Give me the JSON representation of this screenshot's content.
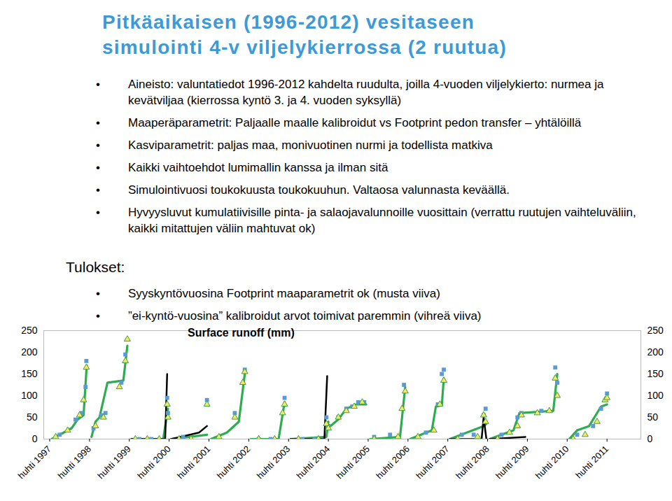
{
  "slide": {
    "title": [
      "Pitkäaikaisen (1996-2012) vesitaseen",
      "simulointi 4-v viljelykierrossa (2 ruutua)"
    ],
    "bullets": [
      "Aineisto: valuntatiedot 1996-2012 kahdelta ruudulta, joilla 4-vuoden viljelykierto: nurmea ja kevätviljaa (kierrossa kyntö 3. ja 4. vuoden syksyllä)",
      "Maaperäparametrit: Paljaalle maalle kalibroidut vs Footprint pedon transfer – yhtälöillä",
      "Kasviparametrit: paljas maa, monivuotinen nurmi ja todellista matkiva",
      "Kaikki vaihtoehdot lumimallin kanssa ja ilman sitä",
      "Simulointivuosi toukokuusta toukokuuhun. Valtaosa valunnasta keväällä.",
      "Hyvyysluvut kumulatiivisille pinta- ja salaojavalunnoille vuosittain (verrattu ruutujen vaihteluväliin, kaikki mitattujen väliin mahtuvat ok)"
    ],
    "results_heading": "Tulokset:",
    "results": [
      "Syyskyntövuosina Footprint maaparametrit ok (musta viiva)",
      "”ei-kyntö-vuosina” kalibroidut arvot toimivat paremmin (vihreä viiva)"
    ]
  },
  "chart_data": {
    "type": "line",
    "title": "Surface runoff (mm)",
    "xlim": [
      1997.1,
      2012.1
    ],
    "xticks": [
      {
        "value": 1997.25,
        "label": "huhti 1997"
      },
      {
        "value": 1998.25,
        "label": "huhti 1998"
      },
      {
        "value": 1999.25,
        "label": "huhti 1999"
      },
      {
        "value": 2000.25,
        "label": "huhti 2000"
      },
      {
        "value": 2001.25,
        "label": "huhti 2001"
      },
      {
        "value": 2002.25,
        "label": "huhti 2002"
      },
      {
        "value": 2003.25,
        "label": "huhti 2003"
      },
      {
        "value": 2004.25,
        "label": "huhti 2004"
      },
      {
        "value": 2005.25,
        "label": "huhti 2005"
      },
      {
        "value": 2006.25,
        "label": "huhti 2006"
      },
      {
        "value": 2007.25,
        "label": "huhti 2007"
      },
      {
        "value": 2008.25,
        "label": "huhti 2008"
      },
      {
        "value": 2009.25,
        "label": "huhti 2009"
      },
      {
        "value": 2010.25,
        "label": "huhti 2010"
      },
      {
        "value": 2011.25,
        "label": "huhti 2011"
      }
    ],
    "ylim": [
      0,
      250
    ],
    "yticks": [
      0,
      50,
      100,
      150,
      200,
      250
    ],
    "series": [
      {
        "type": "line",
        "color": "#2eac4f",
        "x": [
          1997.3,
          1997.8,
          1997.95,
          1998.1,
          1998.18,
          null,
          1998.3,
          1998.4,
          1998.5,
          1998.7,
          1999.1,
          1999.2,
          null,
          1999.3,
          2000.1,
          2000.22,
          null,
          2000.3,
          2001.2,
          null,
          2001.3,
          2001.7,
          2002.0,
          2002.15,
          null,
          2002.3,
          2003.0,
          2003.15,
          null,
          2003.3,
          2004.2,
          2004.25,
          null,
          2004.3,
          2004.5,
          2004.7,
          2004.95,
          2005.2,
          null,
          2005.3,
          2006.05,
          2006.18,
          null,
          2006.3,
          2006.85,
          2006.95,
          2007.1,
          2007.15,
          null,
          2007.3,
          2008.15,
          2008.22,
          null,
          2008.3,
          2008.9,
          2009.05,
          2009.9,
          2010.0,
          null,
          2010.3,
          2010.5,
          2010.8,
          2011.1,
          2011.25
        ],
        "values": [
          0,
          25,
          45,
          55,
          170,
          null,
          5,
          40,
          50,
          130,
          135,
          215,
          null,
          0,
          0,
          70,
          null,
          0,
          10,
          null,
          0,
          15,
          40,
          150,
          null,
          0,
          0,
          85,
          null,
          0,
          5,
          40,
          null,
          30,
          45,
          70,
          80,
          80,
          null,
          0,
          5,
          120,
          null,
          0,
          20,
          75,
          78,
          140,
          null,
          0,
          30,
          35,
          null,
          0,
          20,
          60,
          65,
          150,
          null,
          0,
          20,
          30,
          75,
          80
        ]
      },
      {
        "type": "line",
        "color": "#000000",
        "x": [
          1999.3,
          2000.15,
          2000.2,
          null,
          2000.3,
          2001.0,
          2001.2,
          null,
          2003.3,
          2004.15,
          2004.22,
          null,
          2007.3,
          2008.1,
          2008.15,
          2008.22,
          null,
          2008.3,
          2009.2
        ],
        "values": [
          0,
          0,
          150,
          null,
          0,
          15,
          30,
          null,
          0,
          0,
          145,
          null,
          0,
          0,
          50,
          0,
          null,
          0,
          5
        ]
      },
      {
        "type": "scatter",
        "marker": "square",
        "color": "#5b9bd5",
        "x": [
          1997.5,
          1997.9,
          1998.05,
          1998.15,
          1998.17,
          1998.35,
          1998.55,
          1998.65,
          1999.05,
          1999.15,
          1999.5,
          1999.8,
          2000.2,
          2000.22,
          2000.6,
          2001.2,
          2001.9,
          2002.15,
          2002.5,
          2002.8,
          2003.15,
          2003.6,
          2003.9,
          2004.2,
          2004.25,
          2004.5,
          2004.7,
          2004.85,
          2005.0,
          2005.15,
          2005.4,
          2005.8,
          2006.15,
          2006.7,
          2007.0,
          2007.1,
          2007.15,
          2007.6,
          2007.9,
          2008.15,
          2008.2,
          2008.6,
          2009.0,
          2009.1,
          2009.6,
          2009.95,
          2010.0,
          2010.5,
          2010.9,
          2011.1,
          2011.25
        ],
        "values": [
          10,
          45,
          60,
          120,
          180,
          25,
          55,
          60,
          130,
          195,
          0,
          0,
          95,
          60,
          5,
          90,
          60,
          160,
          0,
          0,
          95,
          0,
          0,
          50,
          30,
          50,
          70,
          75,
          85,
          85,
          5,
          10,
          125,
          15,
          80,
          150,
          160,
          10,
          10,
          55,
          70,
          10,
          50,
          60,
          65,
          165,
          130,
          10,
          30,
          70,
          105
        ]
      },
      {
        "type": "scatter",
        "marker": "triangle",
        "color": "#f5e663",
        "x": [
          1997.4,
          1997.7,
          1998.0,
          1998.1,
          1998.17,
          1998.4,
          1998.6,
          1999.0,
          1999.15,
          1999.2,
          1999.4,
          1999.7,
          2000.0,
          2000.2,
          2000.22,
          2000.5,
          2000.8,
          2001.2,
          2001.5,
          2001.9,
          2002.1,
          2002.15,
          2002.5,
          2002.9,
          2003.1,
          2003.15,
          2003.5,
          2004.0,
          2004.2,
          2004.25,
          2004.5,
          2004.7,
          2004.9,
          2005.1,
          2005.4,
          2006.0,
          2006.1,
          2006.18,
          2006.5,
          2006.9,
          2007.05,
          2007.15,
          2007.5,
          2008.0,
          2008.15,
          2008.2,
          2008.5,
          2008.8,
          2009.0,
          2009.1,
          2009.5,
          2009.8,
          2009.95,
          2010.0,
          2010.4,
          2010.7,
          2011.0,
          2011.2,
          2011.25
        ],
        "values": [
          5,
          20,
          55,
          90,
          165,
          30,
          50,
          120,
          180,
          230,
          0,
          0,
          0,
          80,
          50,
          0,
          0,
          80,
          5,
          50,
          130,
          155,
          0,
          0,
          60,
          80,
          0,
          0,
          35,
          25,
          50,
          65,
          75,
          85,
          0,
          5,
          70,
          110,
          5,
          20,
          80,
          135,
          0,
          5,
          55,
          40,
          0,
          15,
          30,
          55,
          60,
          65,
          140,
          100,
          0,
          10,
          40,
          90,
          95
        ]
      }
    ]
  }
}
